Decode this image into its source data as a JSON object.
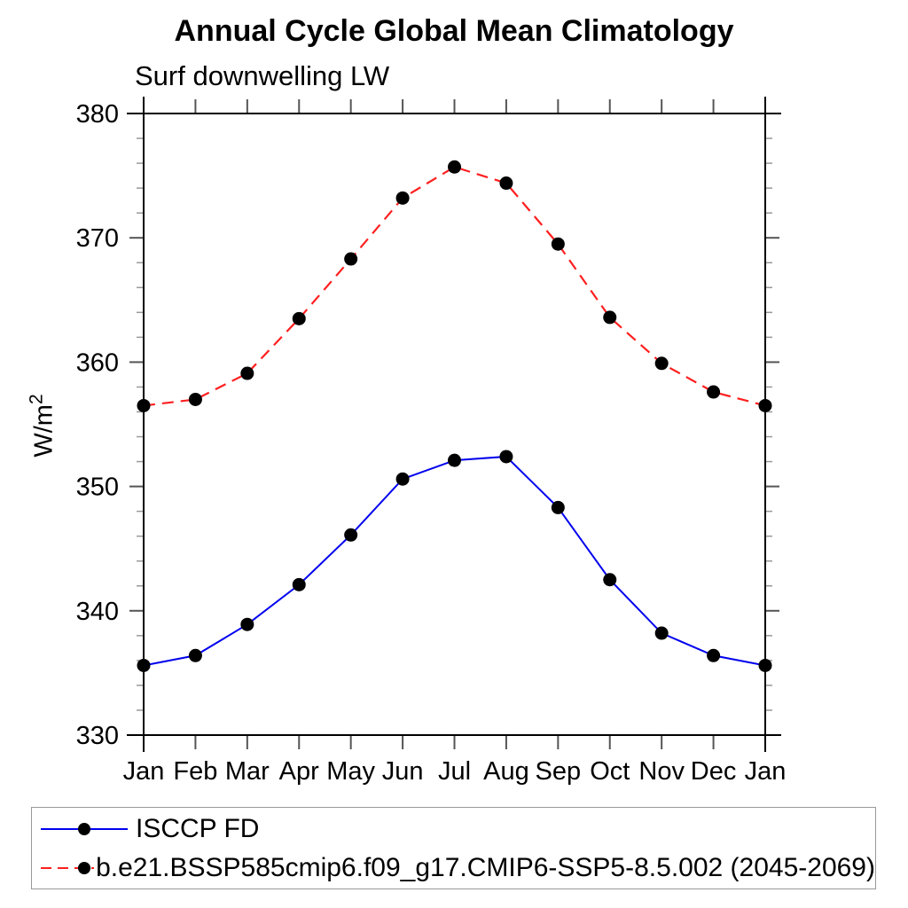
{
  "header": {
    "title": "Annual Cycle Global Mean Climatology",
    "subtitle": "Surf downwelling LW"
  },
  "y_axis": {
    "label_base": "W/m",
    "label_sup": "2"
  },
  "chart_data": {
    "type": "line",
    "title": "Annual Cycle Global Mean Climatology",
    "subtitle": "Surf downwelling LW",
    "ylabel": "W/m2",
    "xlabel": "",
    "x_categories": [
      "Jan",
      "Feb",
      "Mar",
      "Apr",
      "May",
      "Jun",
      "Jul",
      "Aug",
      "Sep",
      "Oct",
      "Nov",
      "Dec",
      "Jan"
    ],
    "ylim": [
      330,
      380
    ],
    "yticks_major": [
      330,
      340,
      350,
      360,
      370,
      380
    ],
    "ytick_minor_step": 2,
    "grid": false,
    "legend_position": "bottom",
    "series": [
      {
        "name": "ISCCP FD",
        "line_style": "solid",
        "line_color": "#0000ee",
        "marker": "filled-circle",
        "marker_color": "#000000",
        "values": [
          335.6,
          336.4,
          338.9,
          342.1,
          346.1,
          350.6,
          352.1,
          352.4,
          348.3,
          342.5,
          338.2,
          336.4,
          335.6
        ]
      },
      {
        "name": "b.e21.BSSP585cmip6.f09_g17.CMIP6-SSP5-8.5.002 (2045-2069)",
        "line_style": "dashed",
        "line_color": "#ff1f1f",
        "marker": "filled-circle",
        "marker_color": "#000000",
        "values": [
          356.5,
          357.0,
          359.1,
          363.5,
          368.3,
          373.2,
          375.7,
          374.4,
          369.5,
          363.6,
          359.9,
          357.6,
          356.5
        ]
      }
    ]
  }
}
